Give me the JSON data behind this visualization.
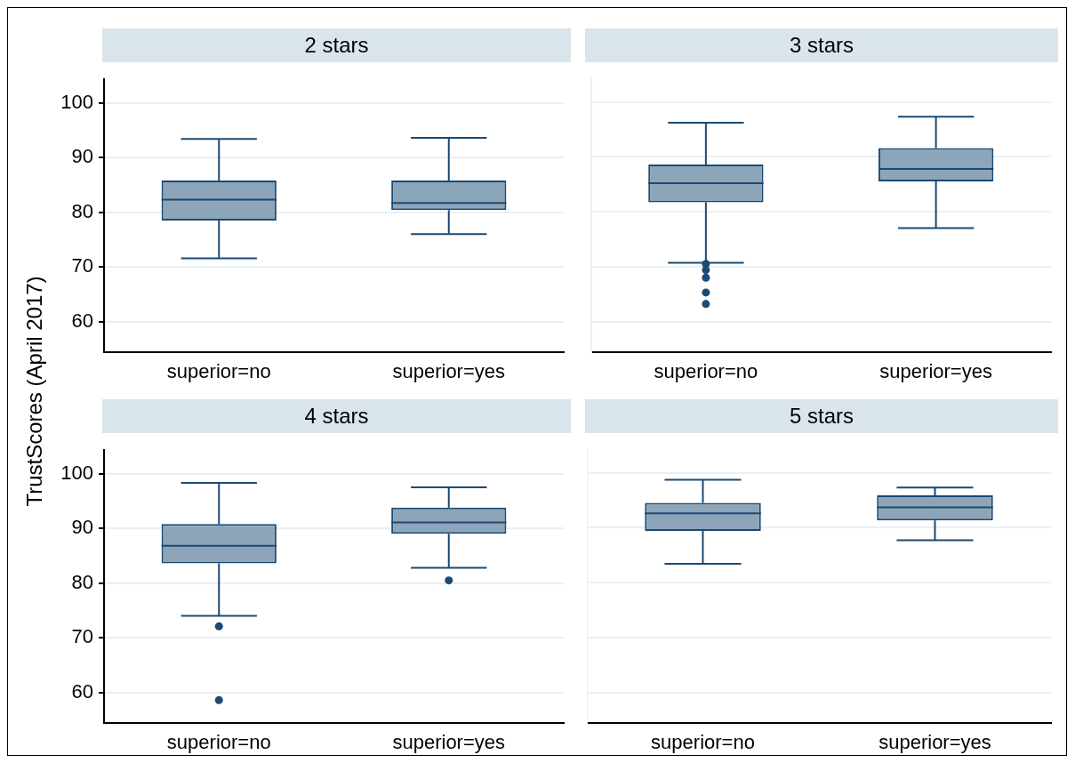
{
  "chart_data": [
    {
      "type": "box",
      "title": "2 stars",
      "ylabel": "TrustScores (April 2017)",
      "categories": [
        "superior=no",
        "superior=yes"
      ],
      "color": "#1b4a73",
      "ylim": [
        54.5,
        104.3
      ],
      "yticks": [
        60,
        70,
        80,
        90,
        100
      ],
      "grid": "y",
      "boxes": [
        {
          "low": 71.6,
          "q1": 78.5,
          "median": 82.3,
          "q3": 85.8,
          "high": 93.4
        },
        {
          "low": 76.0,
          "q1": 80.4,
          "median": 81.7,
          "q3": 85.8,
          "high": 93.6
        }
      ]
    },
    {
      "type": "box",
      "title": "3 stars",
      "categories": [
        "superior=no",
        "superior=yes"
      ],
      "color": "#1b4a73",
      "ylim": [
        54.5,
        104.3
      ],
      "yticks": [
        60,
        70,
        80,
        90,
        100
      ],
      "grid": "y",
      "tick_labels": "x",
      "boxes": [
        {
          "low": 70.7,
          "q1": 81.7,
          "median": 85.2,
          "q3": 88.6,
          "high": 96.2,
          "outliers": [
            70.5,
            69.4,
            68.0,
            65.3,
            63.2
          ]
        },
        {
          "low": 77.0,
          "q1": 85.5,
          "median": 87.8,
          "q3": 91.6,
          "high": 97.3
        }
      ]
    },
    {
      "type": "box",
      "title": "4 stars",
      "categories": [
        "superior=no",
        "superior=yes"
      ],
      "color": "#1b4a73",
      "ylim": [
        54.5,
        104.3
      ],
      "yticks": [
        60,
        70,
        80,
        90,
        100
      ],
      "grid": "y",
      "boxes": [
        {
          "low": 74.0,
          "q1": 83.6,
          "median": 86.8,
          "q3": 90.8,
          "high": 98.3,
          "outliers": [
            72.1,
            58.6
          ]
        },
        {
          "low": 82.8,
          "q1": 89.0,
          "median": 91.1,
          "q3": 93.8,
          "high": 97.5,
          "outliers": [
            80.5
          ]
        }
      ]
    },
    {
      "type": "box",
      "title": "5 stars",
      "categories": [
        "superior=no",
        "superior=yes"
      ],
      "color": "#1b4a73",
      "ylim": [
        54.5,
        104.3
      ],
      "yticks": [
        60,
        70,
        80,
        90,
        100
      ],
      "grid": "y",
      "tick_labels": "x",
      "boxes": [
        {
          "low": 83.4,
          "q1": 89.4,
          "median": 92.6,
          "q3": 94.5,
          "high": 98.7
        },
        {
          "low": 87.7,
          "q1": 91.3,
          "median": 93.7,
          "q3": 95.9,
          "high": 97.3
        }
      ]
    }
  ]
}
